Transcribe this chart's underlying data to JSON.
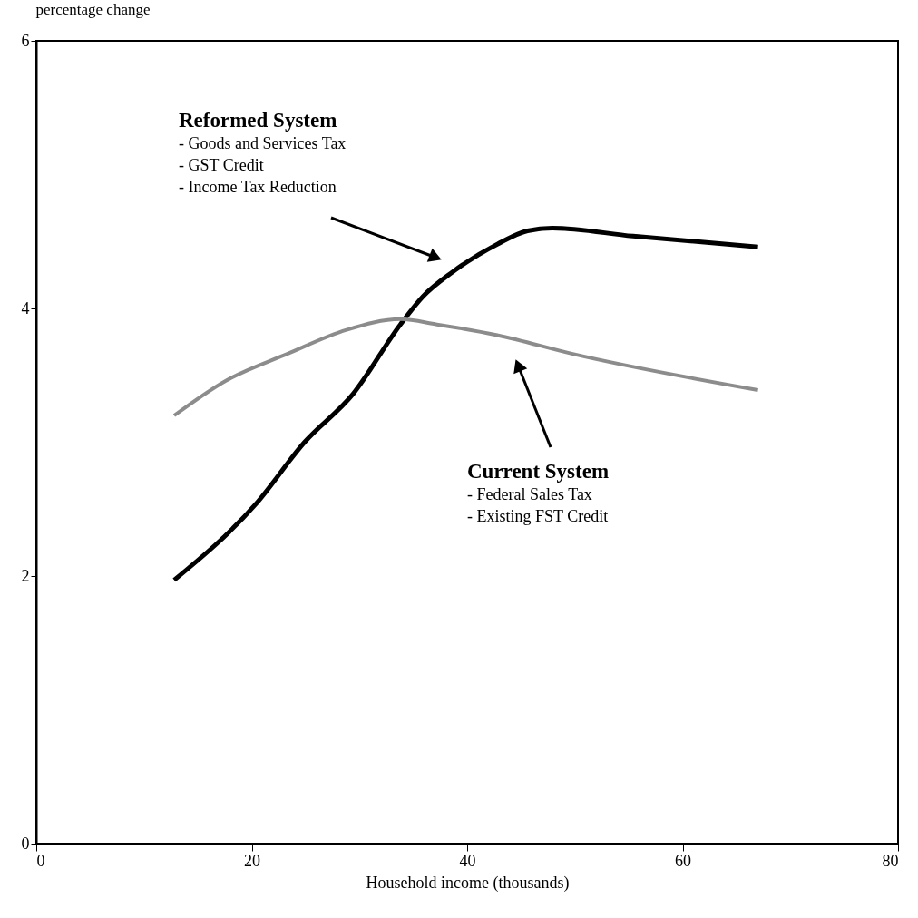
{
  "chart_data": {
    "type": "line",
    "xlabel": "Household income (thousands)",
    "ylabel": "percentage change",
    "xlim": [
      0,
      80
    ],
    "xticks": [
      0,
      20,
      40,
      60,
      80
    ],
    "ylim": [
      0,
      6
    ],
    "yticks": [
      0,
      2,
      4,
      6
    ],
    "grid": false,
    "legend": false,
    "marker": "none",
    "line_style": "solid",
    "series": [
      {
        "color": "#000000",
        "x": [
          12.8,
          20.4,
          24.9,
          29.4,
          33.8,
          35.9,
          38.6,
          42.8,
          45.6,
          47.9,
          55.4,
          67.0
        ],
        "values": [
          1.97,
          2.54,
          3.0,
          3.36,
          3.88,
          4.09,
          4.27,
          4.48,
          4.58,
          4.6,
          4.54,
          4.46
        ]
      },
      {
        "color": "#8c8c8c",
        "x": [
          12.8,
          17.6,
          23.3,
          28.8,
          33.8,
          37.2,
          42.8,
          49.8,
          67.0
        ],
        "values": [
          3.2,
          3.46,
          3.66,
          3.84,
          3.92,
          3.88,
          3.8,
          3.66,
          3.39
        ]
      }
    ],
    "annotations": [
      "Reformed System",
      "- Goods and Services Tax",
      "- GST Credit",
      "- Income Tax Reduction",
      "Current System",
      "- Federal Sales Tax",
      "- Existing FST Credit"
    ]
  }
}
